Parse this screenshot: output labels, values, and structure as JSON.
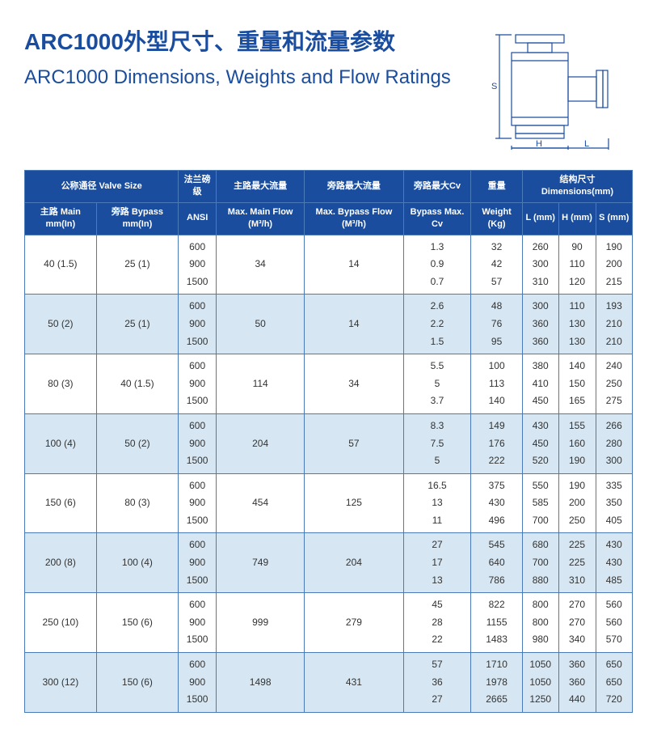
{
  "title_cn": "ARC1000外型尺寸、重量和流量参数",
  "title_en": "ARC1000 Dimensions, Weights and Flow Ratings",
  "colors": {
    "header_bg": "#1a4d9e",
    "header_fg": "#ffffff",
    "row_white": "#ffffff",
    "row_blue": "#d6e6f2",
    "border": "#4a7bb8",
    "title": "#1a4d9e"
  },
  "diagram_labels": {
    "L": "L",
    "H": "H",
    "S": "S"
  },
  "header": {
    "valve_size": "公称通径 Valve Size",
    "main": "主路 Main\nmm(In)",
    "bypass": "旁路 Bypass\nmm(In)",
    "ansi": "法兰磅级",
    "ansi2": "ANSI",
    "max_main": "主路最大流量",
    "max_main2": "Max. Main\nFlow (M³/h)",
    "max_bypass": "旁路最大流量",
    "max_bypass2": "Max. Bypass\nFlow (M³/h)",
    "bypass_cv": "旁路最大Cv",
    "bypass_cv2": "Bypass\nMax. Cv",
    "weight": "重量",
    "weight2": "Weight\n(Kg)",
    "dims": "结构尺寸 Dimensions(mm)",
    "L": "L\n(mm)",
    "H": "H\n(mm)",
    "S": "S\n(mm)"
  },
  "rows": [
    {
      "cls": "white",
      "main": "40 (1.5)",
      "bypass": "25 (1)",
      "ansi": "600\n900\n1500",
      "mmf": "34",
      "mbf": "14",
      "cv": "1.3\n0.9\n0.7",
      "w": "32\n42\n57",
      "L": "260\n300\n310",
      "H": "90\n110\n120",
      "S": "190\n200\n215"
    },
    {
      "cls": "blue",
      "main": "50 (2)",
      "bypass": "25 (1)",
      "ansi": "600\n900\n1500",
      "mmf": "50",
      "mbf": "14",
      "cv": "2.6\n2.2\n1.5",
      "w": "48\n76\n95",
      "L": "300\n360\n360",
      "H": "110\n130\n130",
      "S": "193\n210\n210"
    },
    {
      "cls": "white",
      "main": "80 (3)",
      "bypass": "40 (1.5)",
      "ansi": "600\n900\n1500",
      "mmf": "114",
      "mbf": "34",
      "cv": "5.5\n5\n3.7",
      "w": "100\n113\n140",
      "L": "380\n410\n450",
      "H": "140\n150\n165",
      "S": "240\n250\n275"
    },
    {
      "cls": "blue",
      "main": "100 (4)",
      "bypass": "50 (2)",
      "ansi": "600\n900\n1500",
      "mmf": "204",
      "mbf": "57",
      "cv": "8.3\n7.5\n5",
      "w": "149\n176\n222",
      "L": "430\n450\n520",
      "H": "155\n160\n190",
      "S": "266\n280\n300"
    },
    {
      "cls": "white",
      "main": "150 (6)",
      "bypass": "80 (3)",
      "ansi": "600\n900\n1500",
      "mmf": "454",
      "mbf": "125",
      "cv": "16.5\n13\n11",
      "w": "375\n430\n496",
      "L": "550\n585\n700",
      "H": "190\n200\n250",
      "S": "335\n350\n405"
    },
    {
      "cls": "blue",
      "main": "200 (8)",
      "bypass": "100 (4)",
      "ansi": "600\n900\n1500",
      "mmf": "749",
      "mbf": "204",
      "cv": "27\n17\n13",
      "w": "545\n640\n786",
      "L": "680\n700\n880",
      "H": "225\n225\n310",
      "S": "430\n430\n485"
    },
    {
      "cls": "white",
      "main": "250 (10)",
      "bypass": "150 (6)",
      "ansi": "600\n900\n1500",
      "mmf": "999",
      "mbf": "279",
      "cv": "45\n28\n22",
      "w": "822\n1155\n1483",
      "L": "800\n800\n980",
      "H": "270\n270\n340",
      "S": "560\n560\n570"
    },
    {
      "cls": "blue",
      "main": "300 (12)",
      "bypass": "150 (6)",
      "ansi": "600\n900\n1500",
      "mmf": "1498",
      "mbf": "431",
      "cv": "57\n36\n27",
      "w": "1710\n1978\n2665",
      "L": "1050\n1050\n1250",
      "H": "360\n360\n440",
      "S": "650\n650\n720"
    }
  ]
}
